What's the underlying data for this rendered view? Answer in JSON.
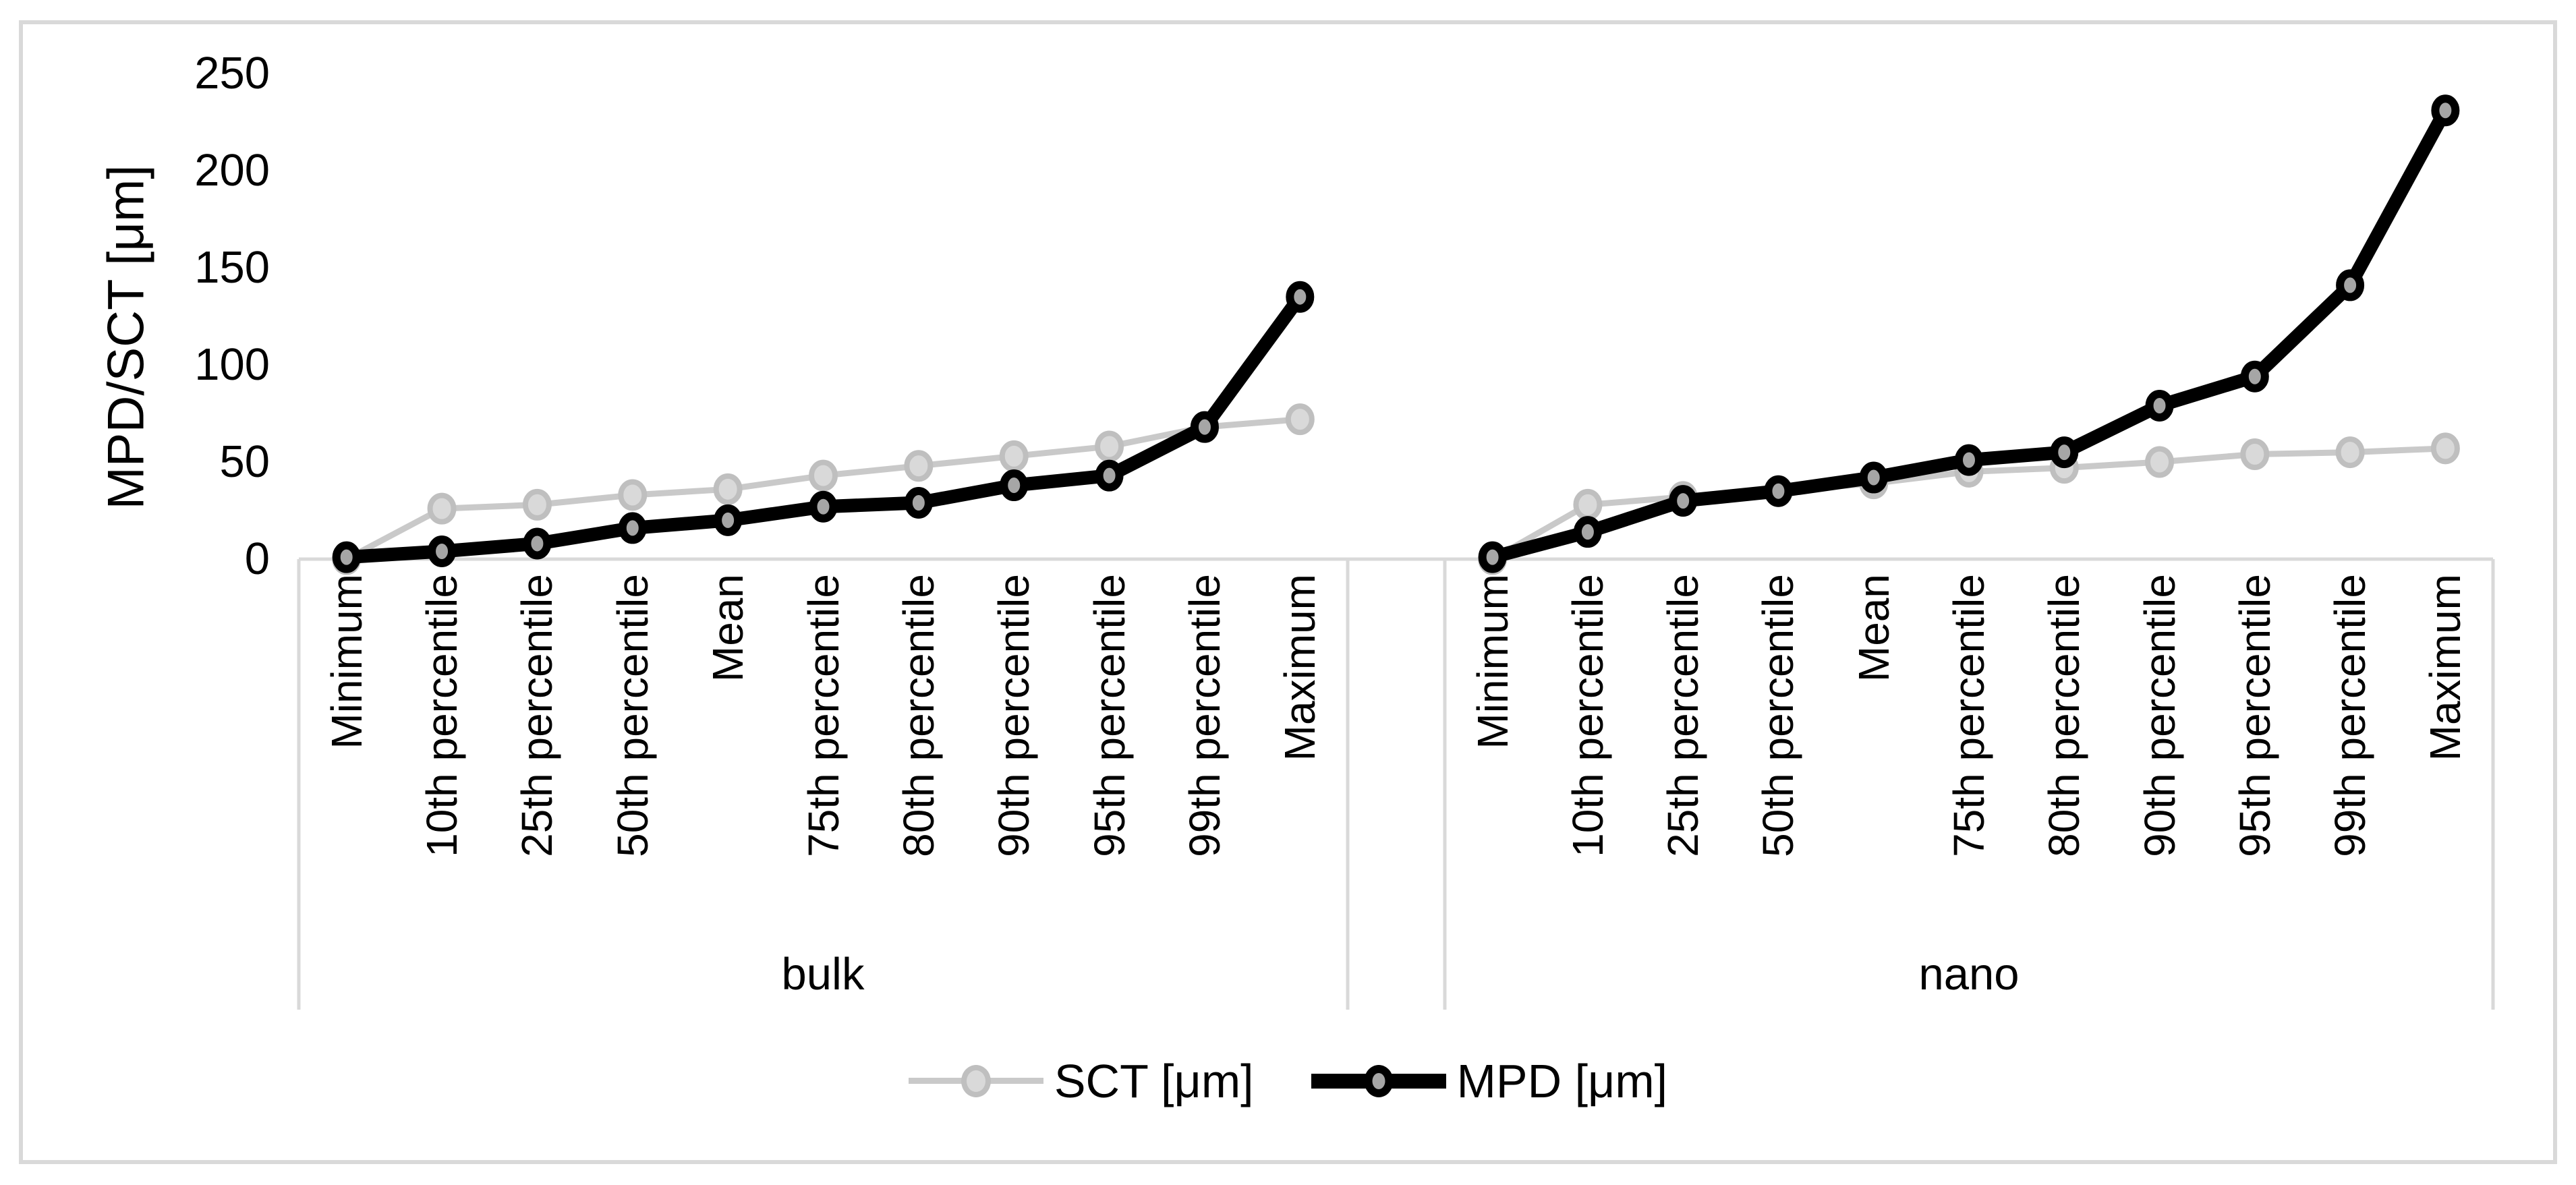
{
  "chart_data": {
    "type": "line",
    "title": "",
    "xlabel": "",
    "ylabel": "MPD/SCT [μm]",
    "ylim": [
      0,
      250
    ],
    "yticks": [
      0,
      50,
      100,
      150,
      200,
      250
    ],
    "grid": false,
    "legend_position": "bottom-center",
    "categories": [
      "Minimum",
      "10th percentile",
      "25th percentile",
      "50th percentile",
      "Mean",
      "75th percentile",
      "80th percentile",
      "90th percentile",
      "95th percentile",
      "99th percentile",
      "Maximum"
    ],
    "groups": [
      {
        "name": "bulk",
        "series": [
          {
            "name": "SCT [μm]",
            "values": [
              0,
              26,
              28,
              33,
              36,
              43,
              48,
              53,
              58,
              68,
              72
            ]
          },
          {
            "name": "MPD [μm]",
            "values": [
              1,
              4,
              8,
              16,
              20,
              27,
              29,
              38,
              43,
              68,
              135
            ]
          }
        ]
      },
      {
        "name": "nano",
        "series": [
          {
            "name": "SCT [μm]",
            "values": [
              0,
              28,
              32,
              35,
              39,
              45,
              47,
              50,
              54,
              55,
              57
            ]
          },
          {
            "name": "MPD [μm]",
            "values": [
              1,
              14,
              30,
              35,
              42,
              51,
              55,
              79,
              94,
              141,
              231
            ]
          }
        ]
      }
    ]
  },
  "legend": {
    "items": [
      {
        "label": "SCT [μm]"
      },
      {
        "label": "MPD [μm]"
      }
    ]
  },
  "colors": {
    "sct_line": "#C9C9C9",
    "sct_marker_fill": "#D9D9D9",
    "sct_marker_border": "#BFBFBF",
    "mpd_line": "#000000",
    "mpd_marker_fill": "#A6A6A6",
    "mpd_marker_border": "#000000",
    "axis_line": "#D9D9D9",
    "figure_border": "#D9D9D9",
    "text": "#000000"
  }
}
